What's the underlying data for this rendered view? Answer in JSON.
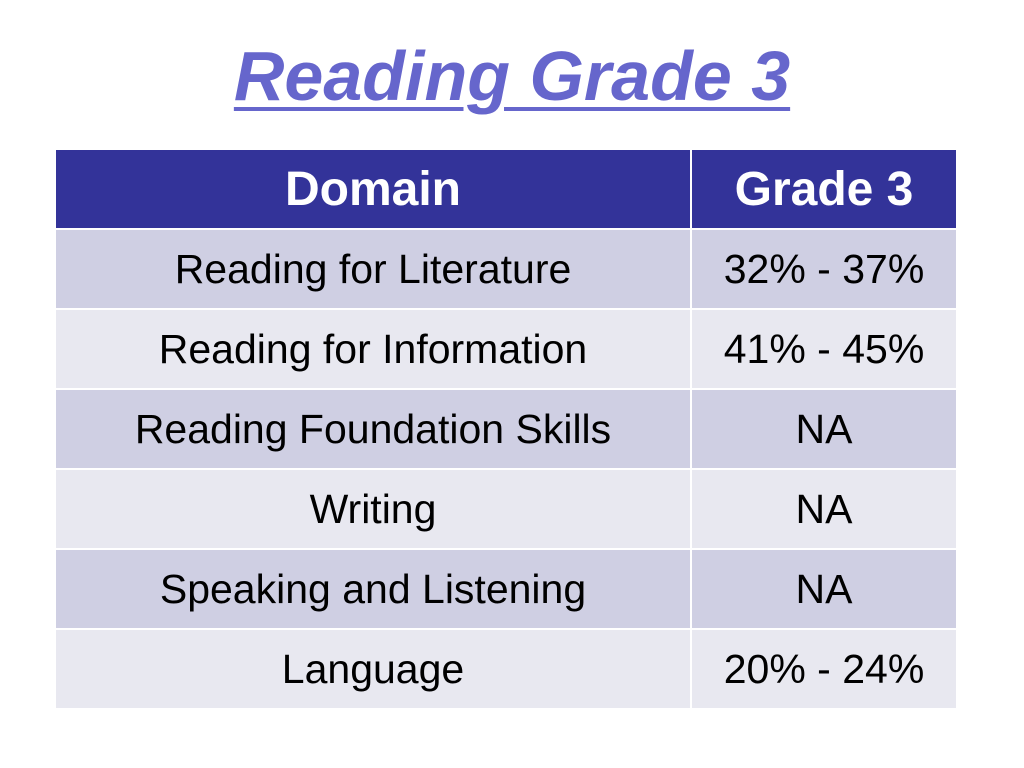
{
  "slide": {
    "title": "Reading Grade 3"
  },
  "colors": {
    "title": "#6666cc",
    "header_bg": "#333399",
    "row_odd_bg": "#cfcfe3",
    "row_even_bg": "#e8e8f0"
  },
  "table": {
    "headers": [
      "Domain",
      "Grade 3"
    ],
    "rows": [
      [
        "Reading for Literature",
        "32% - 37%"
      ],
      [
        "Reading for Information",
        "41% - 45%"
      ],
      [
        "Reading Foundation Skills",
        "NA"
      ],
      [
        "Writing",
        "NA"
      ],
      [
        "Speaking and Listening",
        "NA"
      ],
      [
        "Language",
        "20% - 24%"
      ]
    ]
  }
}
